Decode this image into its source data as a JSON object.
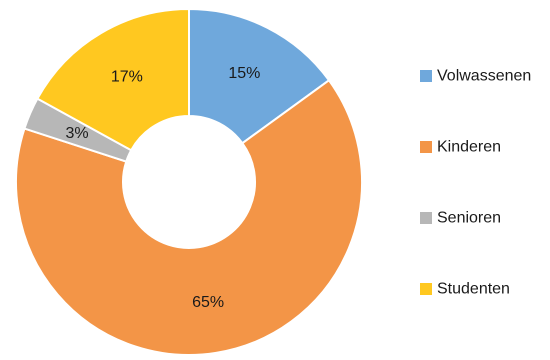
{
  "chart_data": {
    "type": "pie",
    "variant": "donut",
    "title": "",
    "categories": [
      "Volwassenen",
      "Kinderen",
      "Senioren",
      "Studenten"
    ],
    "values": [
      15,
      65,
      3,
      17
    ],
    "value_labels": [
      "15%",
      "65%",
      "3%",
      "17%"
    ],
    "colors": [
      "#6FA8DC",
      "#F39547",
      "#B7B7B7",
      "#FFC820"
    ],
    "legend": {
      "placement": "right",
      "items": [
        "Volwassenen",
        "Kinderen",
        "Senioren",
        "Studenten"
      ]
    },
    "label_color": "#1a1a1a",
    "background_color": "#ffffff"
  }
}
